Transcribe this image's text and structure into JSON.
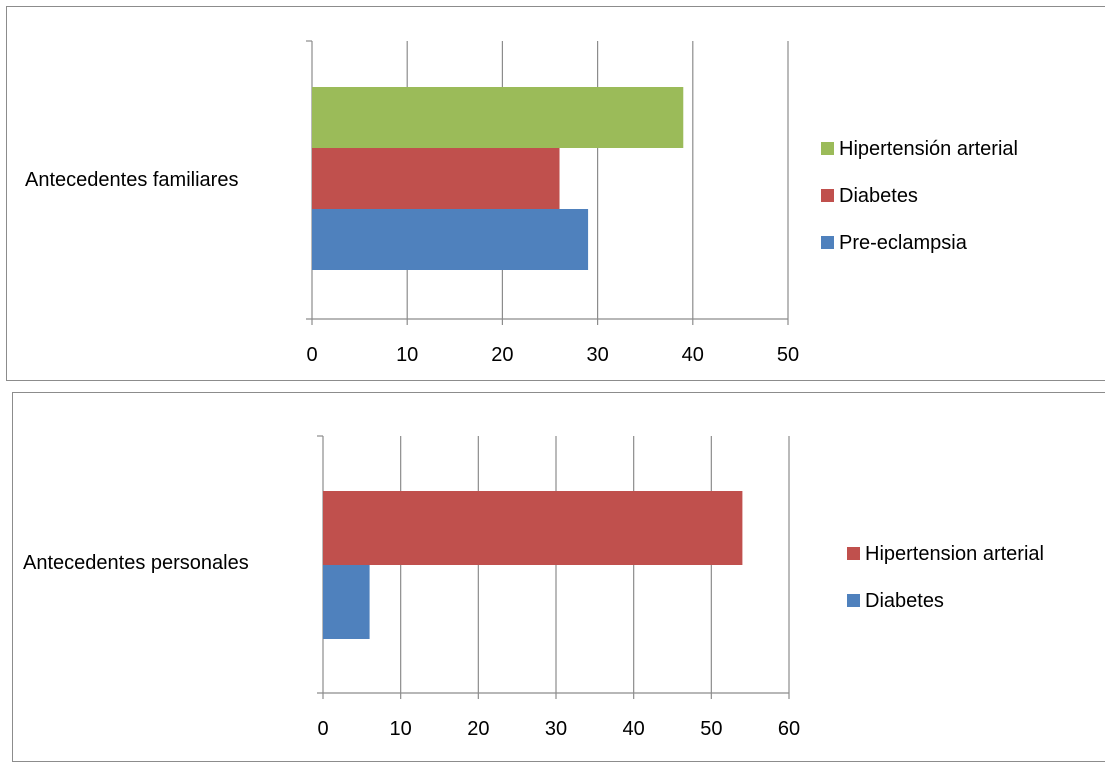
{
  "chart_data": [
    {
      "type": "bar",
      "orientation": "horizontal",
      "categories": [
        "Antecedentes familiares"
      ],
      "series": [
        {
          "name": "Pre-eclampsia",
          "values": [
            29
          ],
          "color": "#4f81bd"
        },
        {
          "name": "Diabetes",
          "values": [
            26
          ],
          "color": "#c0504d"
        },
        {
          "name": "Hipertensión arterial",
          "values": [
            39
          ],
          "color": "#9bbb59"
        }
      ],
      "xlim": [
        0,
        50
      ],
      "xticks": [
        "0",
        "10",
        "20",
        "30",
        "40",
        "50"
      ],
      "grid": "vertical",
      "legend": "right"
    },
    {
      "type": "bar",
      "orientation": "horizontal",
      "categories": [
        "Antecedentes personales"
      ],
      "series": [
        {
          "name": "Diabetes",
          "values": [
            6
          ],
          "color": "#4f81bd"
        },
        {
          "name": "Hipertension arterial",
          "values": [
            54
          ],
          "color": "#c0504d"
        }
      ],
      "xlim": [
        0,
        60
      ],
      "xticks": [
        "0",
        "10",
        "20",
        "30",
        "40",
        "50",
        "60"
      ],
      "grid": "vertical",
      "legend": "right"
    }
  ]
}
